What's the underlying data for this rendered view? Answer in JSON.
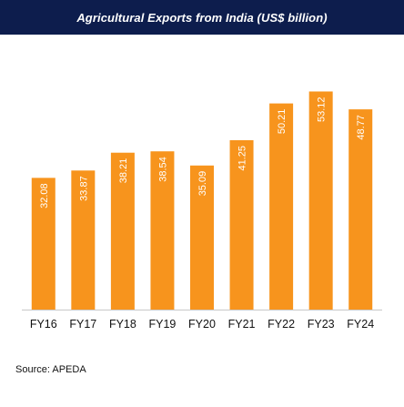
{
  "title": "Agricultural Exports from India (US$ billion)",
  "source": "Source: APEDA",
  "colors": {
    "title_bg": "#0d1d4d",
    "title_text": "#ffffff",
    "bar": "#f7941d",
    "bar_label": "#ffffff",
    "axis": "#c8c8c8",
    "tick_text": "#111111"
  },
  "chart_data": {
    "type": "bar",
    "title": "Agricultural Exports from India (US$ billion)",
    "categories": [
      "FY16",
      "FY17",
      "FY18",
      "FY19",
      "FY20",
      "FY21",
      "FY22",
      "FY23",
      "FY24"
    ],
    "values": [
      32.08,
      33.87,
      38.21,
      38.54,
      35.09,
      41.25,
      50.21,
      53.12,
      48.77
    ],
    "value_labels": [
      "32.08",
      "33.87",
      "38.21",
      "38.54",
      "35.09",
      "41.25",
      "50.21",
      "53.12",
      "48.77"
    ],
    "ylim": [
      0,
      55
    ],
    "xlabel": "",
    "ylabel": "",
    "grid": false,
    "legend": "none",
    "data_labels": "inside-top-rotated"
  }
}
